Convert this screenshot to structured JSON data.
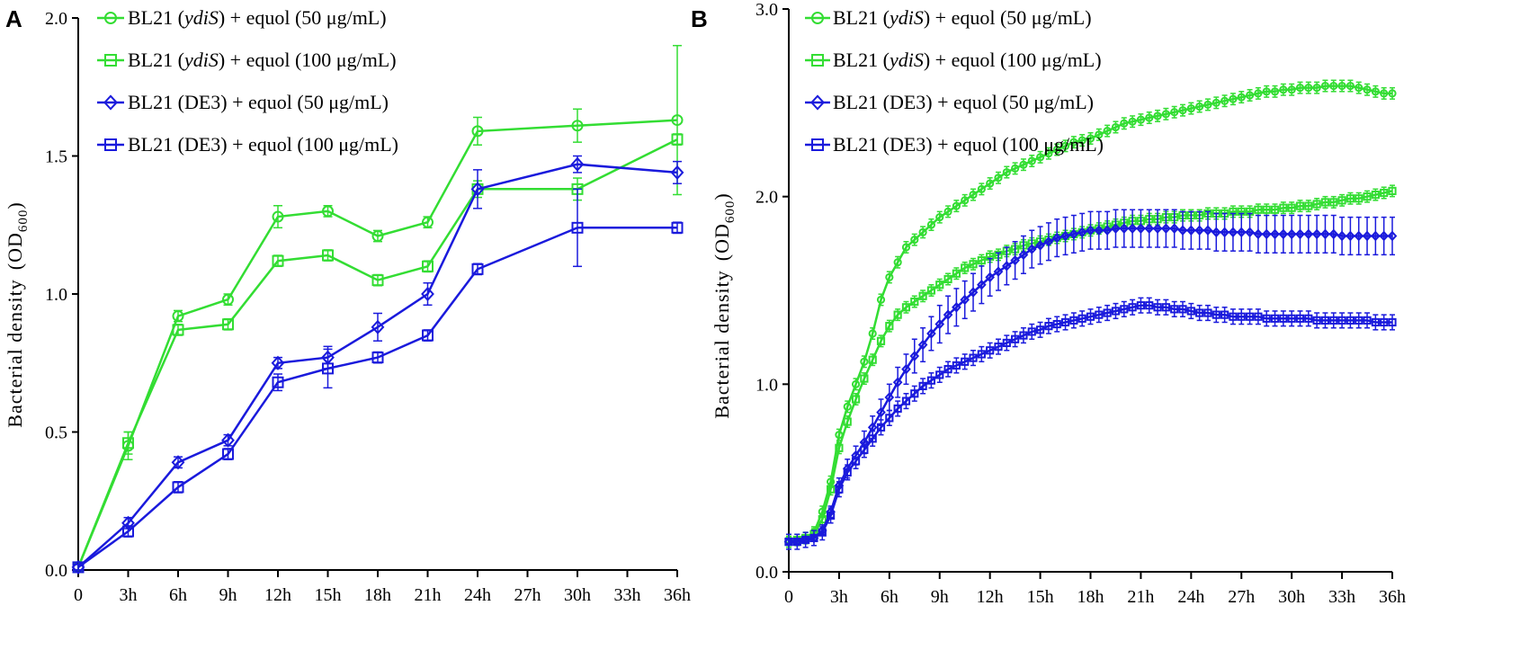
{
  "chart_data": [
    {
      "type": "line",
      "panel": "A",
      "ylabel_main": "Bacterial density",
      "ylabel_open": "(OD",
      "ylabel_sub": "600",
      "ylabel_close": ")",
      "ylim": [
        0,
        2.0
      ],
      "yticks": [
        "0.0",
        "0.5",
        "1.0",
        "1.5",
        "2.0"
      ],
      "ytick_values": [
        0,
        0.5,
        1.0,
        1.5,
        2.0
      ],
      "xlim": [
        0,
        36
      ],
      "xticks": [
        "0",
        "3h",
        "6h",
        "9h",
        "12h",
        "15h",
        "18h",
        "21h",
        "24h",
        "27h",
        "30h",
        "33h",
        "36h"
      ],
      "xtick_values": [
        0,
        3,
        6,
        9,
        12,
        15,
        18,
        21,
        24,
        27,
        30,
        33,
        36
      ],
      "series": [
        {
          "name": "BL21 (ydiS) + equol (50 μg/mL)",
          "strain": "BL21 (",
          "strain_italic": "ydiS",
          "treatment": ") + equol (50 μg/mL)",
          "color": "#33dd33",
          "marker": "circle",
          "x": [
            0,
            3,
            6,
            9,
            12,
            15,
            18,
            21,
            24,
            30,
            36
          ],
          "y": [
            0.01,
            0.45,
            0.92,
            0.98,
            1.28,
            1.3,
            1.21,
            1.26,
            1.59,
            1.61,
            1.63
          ],
          "err": [
            0.01,
            0.05,
            0.02,
            0.02,
            0.04,
            0.02,
            0.02,
            0.02,
            0.05,
            0.06,
            0.27
          ]
        },
        {
          "name": "BL21 (ydiS) + equol (100 μg/mL)",
          "strain": "BL21 (",
          "strain_italic": "ydiS",
          "treatment": ") + equol (100 μg/mL)",
          "color": "#33dd33",
          "marker": "square",
          "x": [
            0,
            3,
            6,
            9,
            12,
            15,
            18,
            21,
            24,
            30,
            36
          ],
          "y": [
            0.01,
            0.46,
            0.87,
            0.89,
            1.12,
            1.14,
            1.05,
            1.1,
            1.38,
            1.38,
            1.56
          ],
          "err": [
            0.01,
            0.04,
            0.02,
            0.02,
            0.02,
            0.02,
            0.02,
            0.02,
            0.03,
            0.04,
            0.02
          ]
        },
        {
          "name": "BL21 (DE3) + equol (50 μg/mL)",
          "strain": "BL21 (DE3)",
          "strain_italic": "",
          "treatment": " + equol (50 μg/mL)",
          "color": "#1a1adc",
          "marker": "diamond",
          "x": [
            0,
            3,
            6,
            9,
            12,
            15,
            18,
            21,
            24,
            30,
            36
          ],
          "y": [
            0.01,
            0.17,
            0.39,
            0.47,
            0.75,
            0.77,
            0.88,
            1.0,
            1.38,
            1.47,
            1.44
          ],
          "err": [
            0.01,
            0.02,
            0.02,
            0.02,
            0.02,
            0.04,
            0.05,
            0.04,
            0.07,
            0.03,
            0.04
          ]
        },
        {
          "name": "BL21 (DE3) + equol (100 μg/mL)",
          "strain": "BL21 (DE3)",
          "strain_italic": "",
          "treatment": " + equol (100 μg/mL)",
          "color": "#1a1adc",
          "marker": "square",
          "x": [
            0,
            3,
            6,
            9,
            12,
            15,
            18,
            21,
            24,
            30,
            36
          ],
          "y": [
            0.01,
            0.14,
            0.3,
            0.42,
            0.68,
            0.73,
            0.77,
            0.85,
            1.09,
            1.24,
            1.24
          ],
          "err": [
            0.01,
            0.02,
            0.02,
            0.02,
            0.03,
            0.07,
            0.02,
            0.02,
            0.02,
            0.14,
            0.02
          ]
        }
      ]
    },
    {
      "type": "line",
      "panel": "B",
      "ylabel_main": "Bacterial density",
      "ylabel_open": "(OD",
      "ylabel_sub": "600",
      "ylabel_close": ")",
      "ylim": [
        0,
        3.0
      ],
      "yticks": [
        "0.0",
        "1.0",
        "2.0",
        "3.0"
      ],
      "ytick_values": [
        0,
        1.0,
        2.0,
        3.0
      ],
      "xlim": [
        0,
        36
      ],
      "xticks": [
        "0",
        "3h",
        "6h",
        "9h",
        "12h",
        "15h",
        "18h",
        "21h",
        "24h",
        "27h",
        "30h",
        "33h",
        "36h"
      ],
      "xtick_values": [
        0,
        3,
        6,
        9,
        12,
        15,
        18,
        21,
        24,
        27,
        30,
        33,
        36
      ],
      "x_step": 0.5,
      "series": [
        {
          "name": "BL21 (ydiS) + equol (50 μg/mL)",
          "strain": "BL21 (",
          "strain_italic": "ydiS",
          "treatment": ") + equol (50 μg/mL)",
          "color": "#33dd33",
          "marker": "circle",
          "y": [
            0.17,
            0.17,
            0.18,
            0.21,
            0.32,
            0.48,
            0.73,
            0.88,
            1.0,
            1.12,
            1.27,
            1.45,
            1.57,
            1.65,
            1.73,
            1.77,
            1.81,
            1.85,
            1.89,
            1.92,
            1.95,
            1.98,
            2.01,
            2.04,
            2.07,
            2.1,
            2.13,
            2.15,
            2.17,
            2.19,
            2.21,
            2.23,
            2.25,
            2.27,
            2.29,
            2.3,
            2.31,
            2.33,
            2.35,
            2.37,
            2.39,
            2.4,
            2.41,
            2.42,
            2.43,
            2.44,
            2.45,
            2.46,
            2.47,
            2.48,
            2.49,
            2.5,
            2.51,
            2.52,
            2.53,
            2.54,
            2.55,
            2.56,
            2.56,
            2.57,
            2.57,
            2.58,
            2.58,
            2.58,
            2.59,
            2.59,
            2.59,
            2.59,
            2.58,
            2.57,
            2.56,
            2.55,
            2.55
          ],
          "err": 0.03
        },
        {
          "name": "BL21 (ydiS) + equol (100 μg/mL)",
          "strain": "BL21 (",
          "strain_italic": "ydiS",
          "treatment": ") + equol (100 μg/mL)",
          "color": "#33dd33",
          "marker": "square",
          "y": [
            0.16,
            0.17,
            0.18,
            0.2,
            0.28,
            0.44,
            0.66,
            0.8,
            0.92,
            1.03,
            1.13,
            1.23,
            1.31,
            1.37,
            1.41,
            1.44,
            1.47,
            1.5,
            1.53,
            1.56,
            1.59,
            1.62,
            1.64,
            1.66,
            1.68,
            1.69,
            1.71,
            1.72,
            1.74,
            1.75,
            1.76,
            1.77,
            1.78,
            1.79,
            1.8,
            1.81,
            1.82,
            1.83,
            1.84,
            1.85,
            1.86,
            1.87,
            1.87,
            1.88,
            1.88,
            1.89,
            1.89,
            1.9,
            1.9,
            1.9,
            1.91,
            1.91,
            1.91,
            1.92,
            1.92,
            1.92,
            1.93,
            1.93,
            1.93,
            1.94,
            1.94,
            1.95,
            1.95,
            1.96,
            1.97,
            1.97,
            1.98,
            1.99,
            1.99,
            2.0,
            2.01,
            2.02,
            2.03
          ],
          "err": 0.03
        },
        {
          "name": "BL21 (DE3) + equol (50 μg/mL)",
          "strain": "BL21 (DE3)",
          "strain_italic": "",
          "treatment": " + equol (50 μg/mL)",
          "color": "#1a1adc",
          "marker": "diamond",
          "y": [
            0.16,
            0.16,
            0.17,
            0.18,
            0.22,
            0.32,
            0.46,
            0.55,
            0.62,
            0.69,
            0.77,
            0.85,
            0.93,
            1.01,
            1.08,
            1.15,
            1.21,
            1.27,
            1.32,
            1.37,
            1.41,
            1.45,
            1.49,
            1.53,
            1.57,
            1.6,
            1.63,
            1.66,
            1.69,
            1.72,
            1.74,
            1.76,
            1.78,
            1.79,
            1.8,
            1.81,
            1.82,
            1.82,
            1.82,
            1.83,
            1.83,
            1.83,
            1.83,
            1.83,
            1.83,
            1.83,
            1.83,
            1.82,
            1.82,
            1.82,
            1.82,
            1.81,
            1.81,
            1.81,
            1.81,
            1.81,
            1.8,
            1.8,
            1.8,
            1.8,
            1.8,
            1.8,
            1.8,
            1.8,
            1.8,
            1.8,
            1.79,
            1.79,
            1.79,
            1.79,
            1.79,
            1.79,
            1.79
          ],
          "err": [
            0.01,
            0.01,
            0.01,
            0.01,
            0.02,
            0.03,
            0.04,
            0.05,
            0.05,
            0.06,
            0.06,
            0.07,
            0.07,
            0.08,
            0.08,
            0.09,
            0.09,
            0.09,
            0.1,
            0.1,
            0.1,
            0.1,
            0.1,
            0.1,
            0.1,
            0.1,
            0.1,
            0.1,
            0.1,
            0.1,
            0.1,
            0.1,
            0.1,
            0.1,
            0.1,
            0.1,
            0.1,
            0.1,
            0.1,
            0.1,
            0.1,
            0.1,
            0.1,
            0.1,
            0.1,
            0.1,
            0.1,
            0.1,
            0.1,
            0.1,
            0.1,
            0.1,
            0.1,
            0.1,
            0.1,
            0.1,
            0.1,
            0.1,
            0.1,
            0.1,
            0.1,
            0.1,
            0.1,
            0.1,
            0.1,
            0.1,
            0.1,
            0.1,
            0.1,
            0.1,
            0.1,
            0.1,
            0.1
          ]
        },
        {
          "name": "BL21 (DE3) + equol (100 μg/mL)",
          "strain": "BL21 (DE3)",
          "strain_italic": "",
          "treatment": " + equol (100 μg/mL)",
          "color": "#1a1adc",
          "marker": "square",
          "y": [
            0.16,
            0.16,
            0.17,
            0.18,
            0.21,
            0.3,
            0.44,
            0.53,
            0.59,
            0.65,
            0.71,
            0.77,
            0.82,
            0.87,
            0.91,
            0.95,
            0.99,
            1.02,
            1.05,
            1.08,
            1.1,
            1.12,
            1.14,
            1.16,
            1.18,
            1.2,
            1.22,
            1.24,
            1.26,
            1.28,
            1.29,
            1.31,
            1.32,
            1.33,
            1.34,
            1.35,
            1.36,
            1.37,
            1.38,
            1.39,
            1.4,
            1.41,
            1.42,
            1.42,
            1.41,
            1.41,
            1.4,
            1.4,
            1.39,
            1.38,
            1.38,
            1.37,
            1.37,
            1.36,
            1.36,
            1.36,
            1.36,
            1.35,
            1.35,
            1.35,
            1.35,
            1.35,
            1.35,
            1.34,
            1.34,
            1.34,
            1.34,
            1.34,
            1.34,
            1.34,
            1.33,
            1.33,
            1.33
          ],
          "err": 0.04
        }
      ]
    }
  ]
}
